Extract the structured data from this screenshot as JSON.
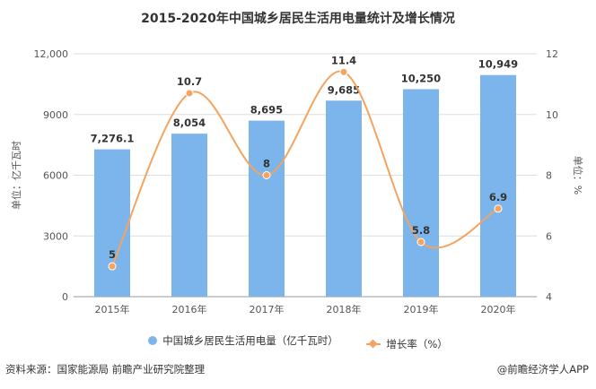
{
  "chart_data": {
    "type": "bar+line",
    "title": "2015-2020年中国城乡居民生活用电量统计及增长情况",
    "categories": [
      "2015年",
      "2016年",
      "2017年",
      "2018年",
      "2019年",
      "2020年"
    ],
    "series": [
      {
        "name": "中国城乡居民生活用电量（亿千瓦时）",
        "type": "bar",
        "axis": "left",
        "values": [
          7276.1,
          8054,
          8695,
          9685,
          10250,
          10949
        ],
        "labels": [
          "7,276.1",
          "8,054",
          "8,695",
          "9,685",
          "10,250",
          "10,949"
        ],
        "color": "#7cb5ec"
      },
      {
        "name": "增长率（%）",
        "type": "line",
        "axis": "right",
        "values": [
          5,
          10.7,
          8,
          11.4,
          5.8,
          6.9
        ],
        "labels": [
          "5",
          "10.7",
          "8",
          "11.4",
          "5.8",
          "6.9"
        ],
        "color": "#f4a460"
      }
    ],
    "ylabel": "单位：亿千瓦时",
    "y2label": "单位：%",
    "ylim": [
      0,
      12000
    ],
    "yticks": [
      "0",
      "3000",
      "6000",
      "9000",
      "12,000"
    ],
    "y2lim": [
      4,
      12
    ],
    "y2ticks": [
      "4",
      "6",
      "8",
      "10",
      "12"
    ],
    "grid": true,
    "legend": "bottom"
  },
  "source": "资料来源：国家能源局 前瞻产业研究院整理",
  "credit": "@前瞻经济学人APP"
}
